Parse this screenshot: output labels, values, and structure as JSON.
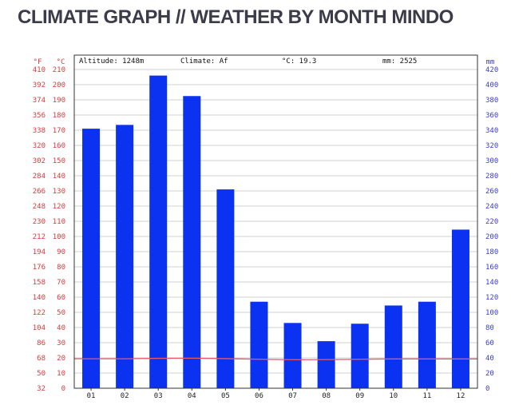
{
  "page": {
    "title": "CLIMATE GRAPH // WEATHER BY MONTH MINDO"
  },
  "chart_data": {
    "type": "bar",
    "header": {
      "altitude": "Altitude: 1248m",
      "climate": "Climate: Af",
      "avg_temp": "°C: 19.3",
      "precip": "mm: 2525"
    },
    "axis_units": {
      "fahrenheit": "°F",
      "celsius": "°C",
      "mm": "mm"
    },
    "categories": [
      "01",
      "02",
      "03",
      "04",
      "05",
      "06",
      "07",
      "08",
      "09",
      "10",
      "11",
      "12"
    ],
    "precipitation_mm": [
      342,
      347,
      412,
      385,
      262,
      114,
      86,
      62,
      85,
      109,
      114,
      209
    ],
    "temperature_c": [
      19.4,
      19.4,
      19.7,
      19.8,
      19.5,
      19.1,
      18.8,
      18.9,
      19.1,
      19.3,
      19.3,
      19.3
    ],
    "celsius_ticks": [
      0,
      10,
      20,
      30,
      40,
      50,
      60,
      70,
      80,
      90,
      100,
      110,
      120,
      130,
      140,
      150,
      160,
      170,
      180,
      190,
      200,
      210
    ],
    "fahrenheit_ticks": [
      32,
      50,
      68,
      86,
      104,
      122,
      140,
      158,
      176,
      194,
      212,
      230,
      248,
      266,
      284,
      302,
      320,
      338,
      356,
      374,
      392,
      410
    ],
    "mm_ticks": [
      0,
      20,
      40,
      60,
      80,
      100,
      120,
      140,
      160,
      180,
      200,
      220,
      240,
      260,
      280,
      300,
      320,
      340,
      360,
      380,
      400,
      420
    ],
    "ylim_mm": [
      0,
      420
    ],
    "ylim_c": [
      0,
      210
    ],
    "grid": true,
    "colors": {
      "bars": "#0a32f0",
      "temp_line": "#e85a6e",
      "left_labels": "#d93a3a",
      "right_labels": "#3a3ad9",
      "grid": "#d0d0d0"
    }
  }
}
